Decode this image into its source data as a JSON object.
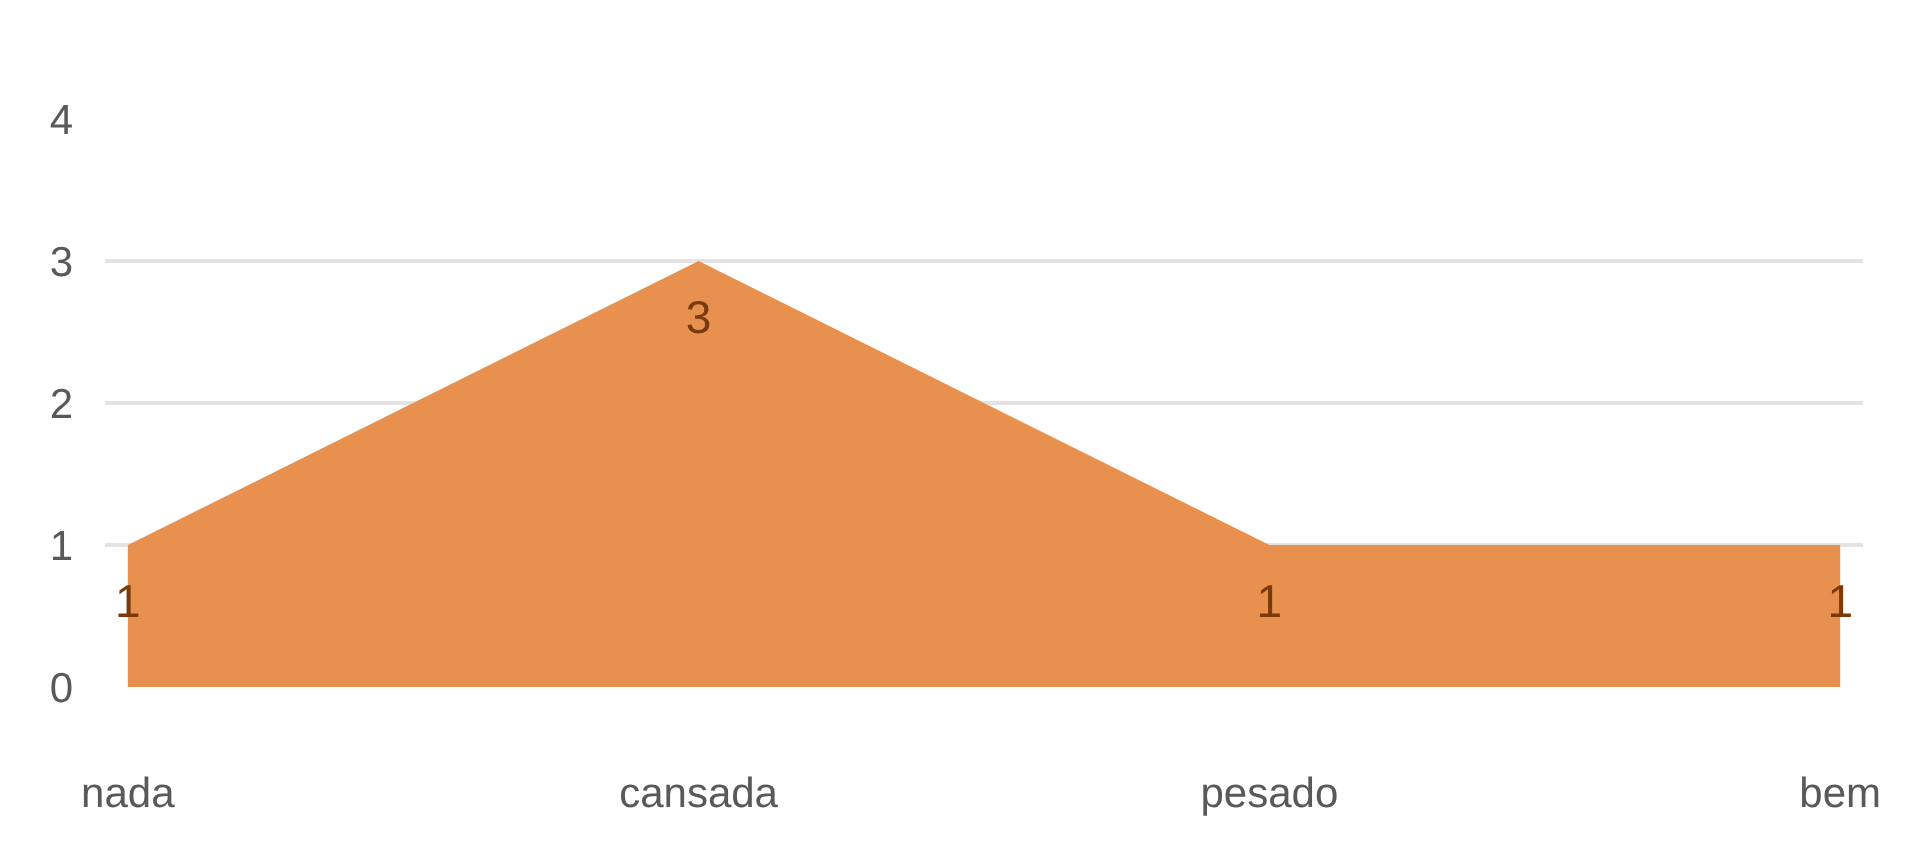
{
  "chart_data": {
    "type": "area",
    "categories": [
      "nada",
      "cansada",
      "pesado",
      "bem"
    ],
    "values": [
      1,
      3,
      1,
      1
    ],
    "color": "#e8914f",
    "ylim": [
      0,
      4
    ],
    "yticks": [
      0,
      1,
      2,
      3,
      4
    ],
    "grid": "y",
    "data_labels": true
  }
}
